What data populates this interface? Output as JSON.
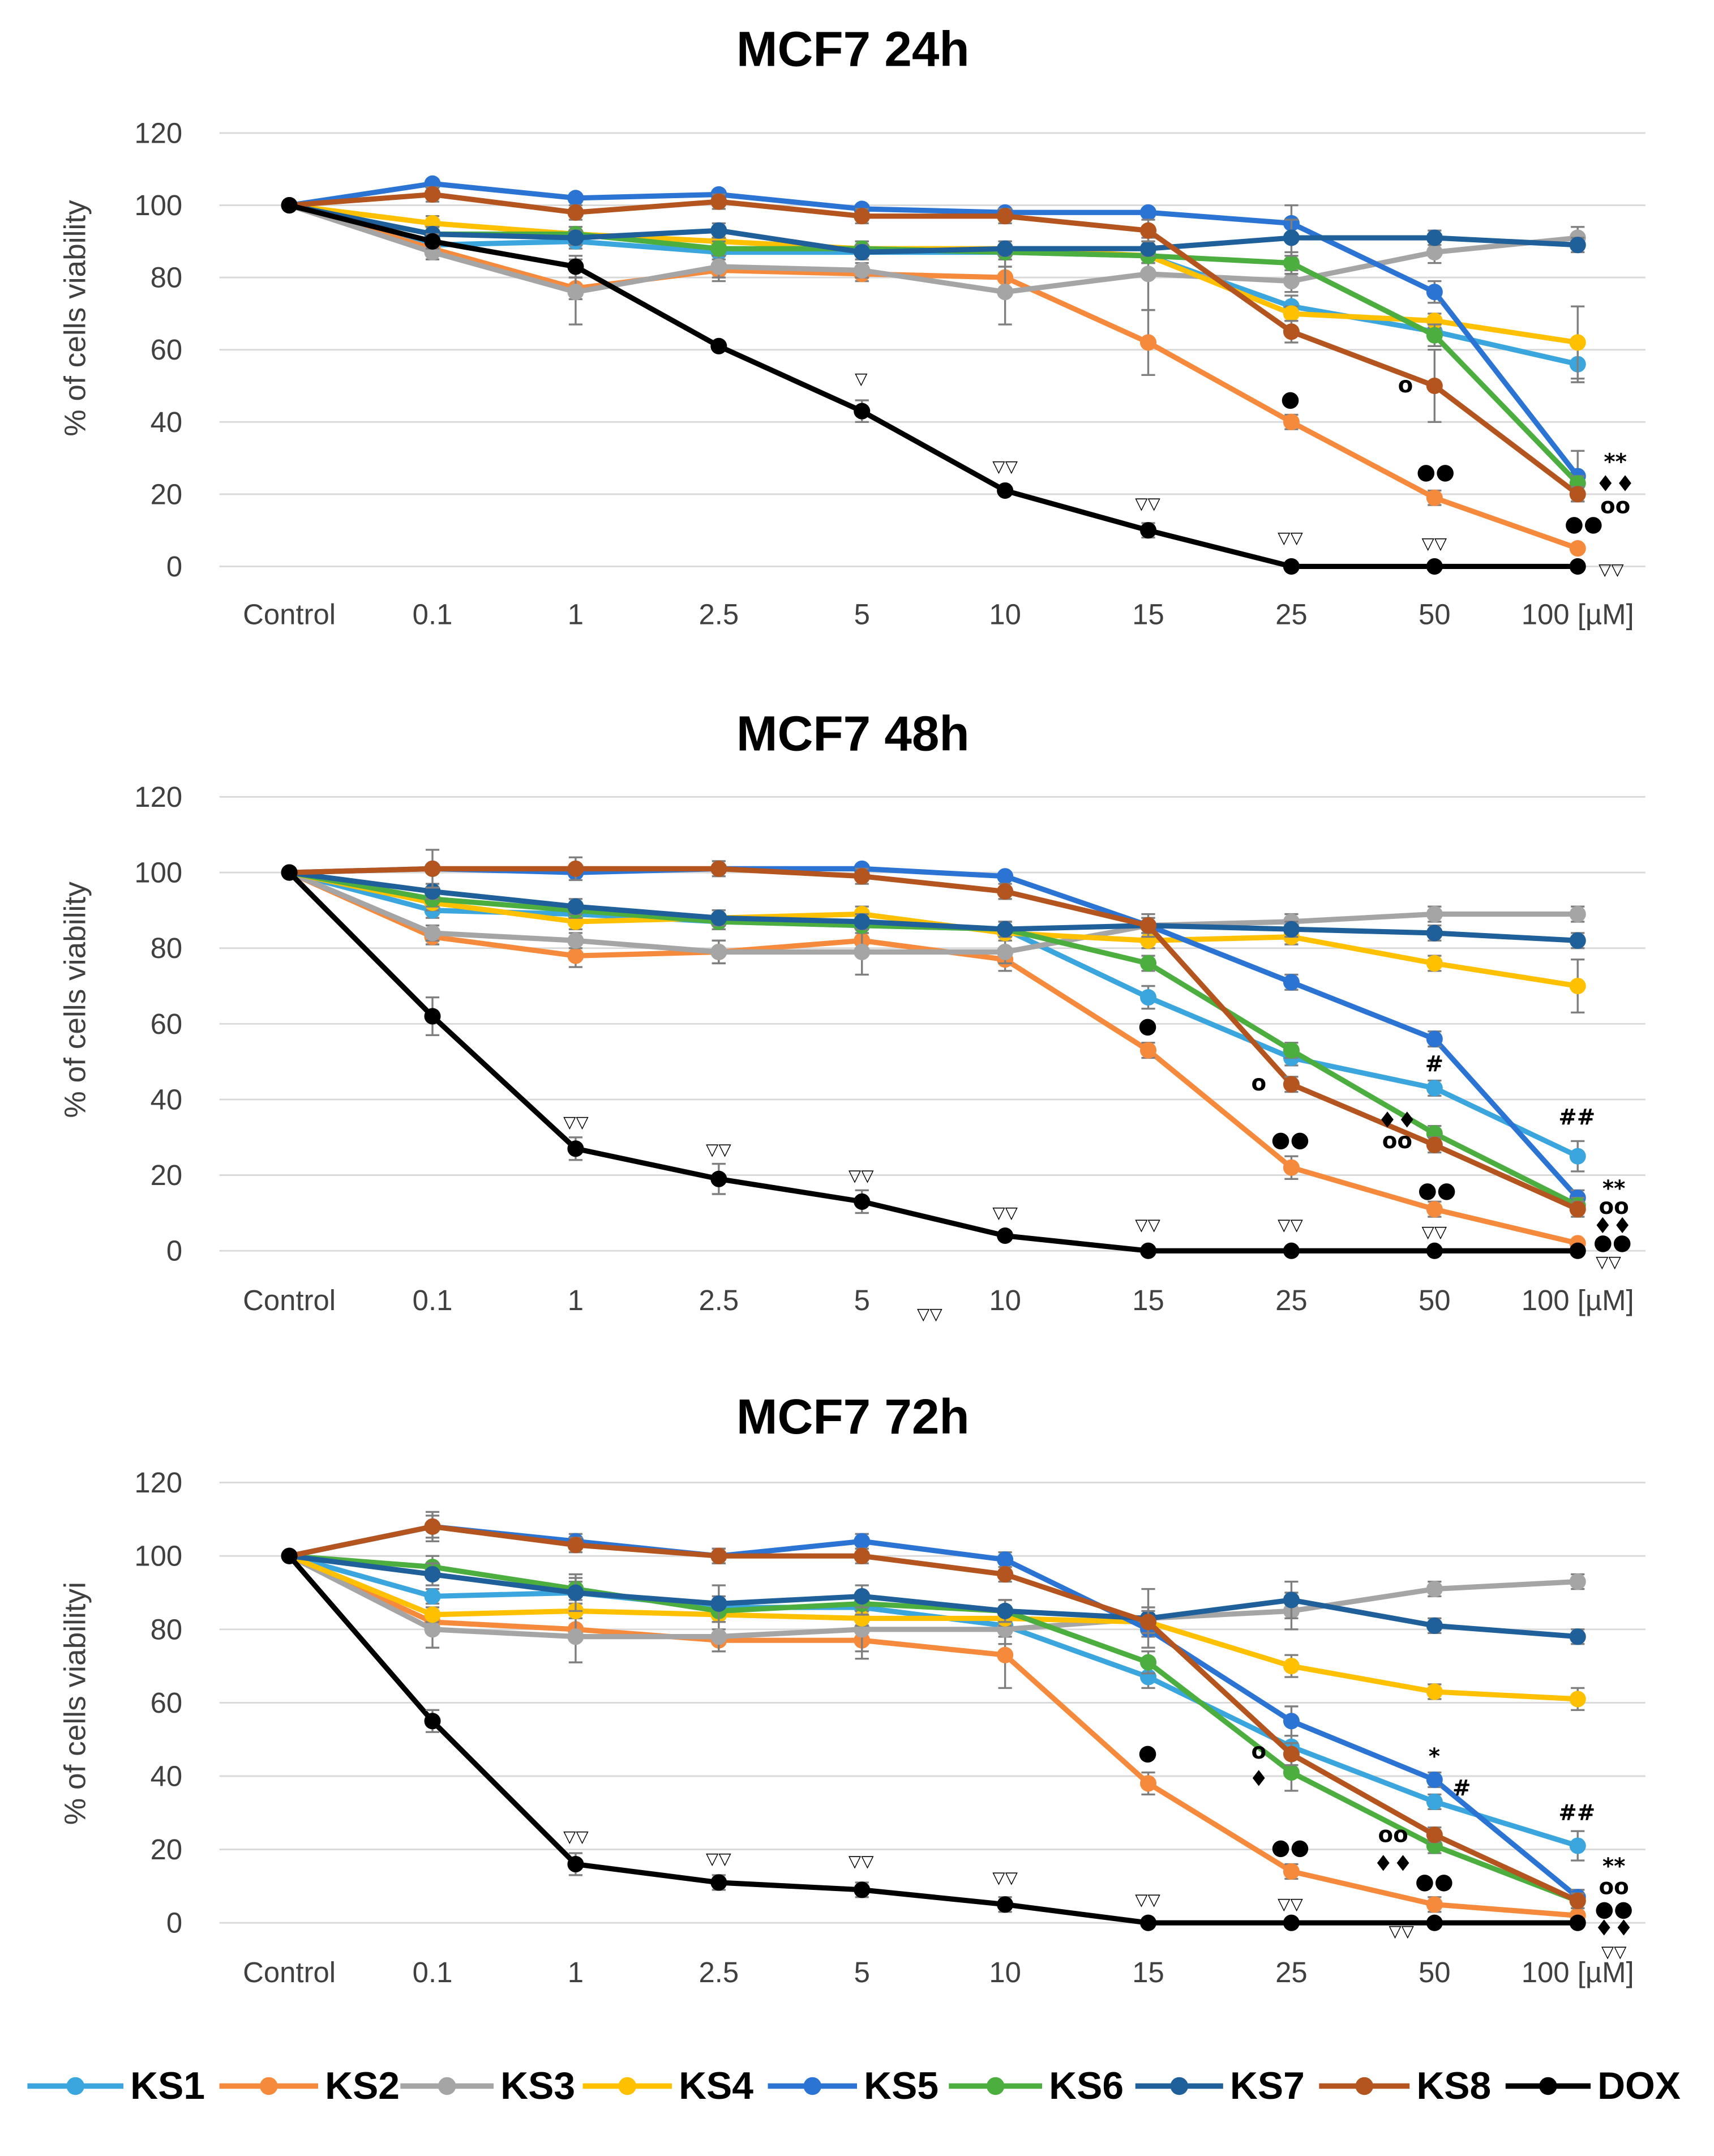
{
  "chart_data": [
    {
      "type": "line",
      "title": "MCF7 24h",
      "ylabel": "% of cells viability",
      "categories": [
        "Control",
        "0.1",
        "1",
        "2.5",
        "5",
        "10",
        "15",
        "25",
        "50",
        "100 [µM]"
      ],
      "ylim": [
        0,
        120
      ],
      "yticks": [
        0,
        20,
        40,
        60,
        80,
        100,
        120
      ],
      "grid": true,
      "legend": "bottom",
      "series": [
        {
          "name": "KS1",
          "color": "#3AA6DD",
          "values": [
            100,
            89,
            90,
            87,
            87,
            87,
            86,
            72,
            65,
            56
          ],
          "err": [
            0,
            2,
            2,
            2,
            2,
            2,
            2,
            3,
            2,
            5
          ]
        },
        {
          "name": "KS2",
          "color": "#F68A3C",
          "values": [
            100,
            88,
            77,
            82,
            81,
            80,
            62,
            40,
            19,
            5
          ],
          "err": [
            0,
            2,
            3,
            3,
            2,
            3,
            9,
            2,
            2,
            1
          ]
        },
        {
          "name": "KS3",
          "color": "#A5A5A5",
          "values": [
            100,
            87,
            76,
            83,
            82,
            76,
            81,
            79,
            87,
            91
          ],
          "err": [
            0,
            2,
            9,
            3,
            2,
            9,
            10,
            3,
            3,
            3
          ]
        },
        {
          "name": "KS4",
          "color": "#FFC000",
          "values": [
            100,
            95,
            92,
            90,
            88,
            88,
            86,
            70,
            68,
            62
          ],
          "err": [
            0,
            2,
            2,
            2,
            2,
            2,
            2,
            2,
            2,
            10
          ]
        },
        {
          "name": "KS5",
          "color": "#2B74D3",
          "values": [
            100,
            106,
            102,
            103,
            99,
            98,
            98,
            95,
            76,
            25
          ],
          "err": [
            0,
            1,
            1,
            1,
            1,
            1,
            1,
            5,
            3,
            7
          ]
        },
        {
          "name": "KS6",
          "color": "#4BAE3F",
          "values": [
            100,
            92,
            92,
            88,
            88,
            87,
            86,
            84,
            64,
            23
          ],
          "err": [
            0,
            2,
            2,
            2,
            2,
            2,
            2,
            3,
            3,
            2
          ]
        },
        {
          "name": "KS7",
          "color": "#1F5F9A",
          "values": [
            100,
            92,
            91,
            93,
            87,
            88,
            88,
            91,
            91,
            89
          ],
          "err": [
            0,
            2,
            2,
            2,
            2,
            2,
            2,
            5,
            2,
            2
          ]
        },
        {
          "name": "KS8",
          "color": "#B4541E",
          "values": [
            100,
            103,
            98,
            101,
            97,
            97,
            93,
            65,
            50,
            20
          ],
          "err": [
            0,
            2,
            2,
            2,
            2,
            2,
            3,
            3,
            10,
            2
          ]
        },
        {
          "name": "DOX",
          "color": "#000000",
          "values": [
            100,
            90,
            83,
            61,
            43,
            21,
            10,
            0,
            0,
            0
          ],
          "err": [
            0,
            2,
            3,
            1,
            3,
            1,
            2,
            0,
            0,
            0
          ]
        }
      ],
      "annotations": [
        "▽",
        "▽▽",
        "▽▽",
        "▽▽",
        "▽▽",
        "▽▽",
        "●",
        "o",
        "●●",
        "**",
        "♦♦",
        "oo",
        "●●"
      ]
    },
    {
      "type": "line",
      "title": "MCF7 48h",
      "ylabel": "% of cells viability",
      "categories": [
        "Control",
        "0.1",
        "1",
        "2.5",
        "5",
        "10",
        "15",
        "25",
        "50",
        "100 [µM]"
      ],
      "ylim": [
        0,
        120
      ],
      "yticks": [
        0,
        20,
        40,
        60,
        80,
        100,
        120
      ],
      "grid": true,
      "legend": "bottom",
      "series": [
        {
          "name": "KS1",
          "color": "#3AA6DD",
          "values": [
            100,
            90,
            89,
            87,
            86,
            85,
            67,
            51,
            43,
            25
          ],
          "err": [
            0,
            2,
            2,
            2,
            2,
            2,
            3,
            2,
            2,
            4
          ]
        },
        {
          "name": "KS2",
          "color": "#F68A3C",
          "values": [
            100,
            83,
            78,
            79,
            82,
            77,
            53,
            22,
            11,
            2
          ],
          "err": [
            0,
            2,
            3,
            3,
            3,
            3,
            2,
            3,
            2,
            1
          ]
        },
        {
          "name": "KS3",
          "color": "#A5A5A5",
          "values": [
            100,
            84,
            82,
            79,
            79,
            79,
            86,
            87,
            89,
            89
          ],
          "err": [
            0,
            2,
            2,
            3,
            6,
            3,
            2,
            2,
            2,
            2
          ]
        },
        {
          "name": "KS4",
          "color": "#FFC000",
          "values": [
            100,
            92,
            87,
            88,
            89,
            84,
            82,
            83,
            76,
            70
          ],
          "err": [
            0,
            2,
            2,
            2,
            2,
            2,
            2,
            2,
            2,
            7
          ]
        },
        {
          "name": "KS5",
          "color": "#2B74D3",
          "values": [
            100,
            101,
            100,
            101,
            101,
            99,
            86,
            71,
            56,
            14
          ],
          "err": [
            0,
            1,
            1,
            1,
            1,
            1,
            2,
            2,
            2,
            2
          ]
        },
        {
          "name": "KS6",
          "color": "#4BAE3F",
          "values": [
            100,
            93,
            90,
            87,
            86,
            85,
            76,
            53,
            31,
            12
          ],
          "err": [
            0,
            2,
            2,
            2,
            2,
            2,
            2,
            2,
            2,
            2
          ]
        },
        {
          "name": "KS7",
          "color": "#1F5F9A",
          "values": [
            100,
            95,
            91,
            88,
            87,
            85,
            86,
            85,
            84,
            82
          ],
          "err": [
            0,
            2,
            2,
            2,
            2,
            2,
            2,
            2,
            2,
            2
          ]
        },
        {
          "name": "KS8",
          "color": "#B4541E",
          "values": [
            100,
            101,
            101,
            101,
            99,
            95,
            86,
            44,
            28,
            11
          ],
          "err": [
            0,
            5,
            3,
            2,
            2,
            2,
            3,
            2,
            2,
            2
          ]
        },
        {
          "name": "DOX",
          "color": "#000000",
          "values": [
            100,
            62,
            27,
            19,
            13,
            4,
            0,
            0,
            0,
            0
          ],
          "err": [
            0,
            5,
            3,
            4,
            3,
            1,
            0,
            0,
            0,
            0
          ]
        }
      ],
      "annotations": [
        "▽▽",
        "▽▽",
        "▽▽",
        "▽▽",
        "▽▽",
        "▽▽",
        "▽▽",
        "▽▽",
        "▽▽",
        "●",
        "o",
        "●●",
        "#",
        "♦♦",
        "oo",
        "●●",
        "##",
        "**",
        "oo",
        "♦♦",
        "●●"
      ]
    },
    {
      "type": "line",
      "title": "MCF7 72h",
      "ylabel": "% of cells viabilityi",
      "categories": [
        "Control",
        "0.1",
        "1",
        "2.5",
        "5",
        "10",
        "15",
        "25",
        "50",
        "100 [µM]"
      ],
      "ylim": [
        0,
        120
      ],
      "yticks": [
        0,
        20,
        40,
        60,
        80,
        100,
        120
      ],
      "grid": true,
      "legend": "bottom",
      "series": [
        {
          "name": "KS1",
          "color": "#3AA6DD",
          "values": [
            100,
            89,
            90,
            86,
            86,
            81,
            67,
            48,
            33,
            21
          ],
          "err": [
            0,
            2,
            3,
            3,
            3,
            3,
            3,
            3,
            2,
            4
          ]
        },
        {
          "name": "KS2",
          "color": "#F68A3C",
          "values": [
            100,
            82,
            80,
            77,
            77,
            73,
            38,
            14,
            5,
            2
          ],
          "err": [
            0,
            3,
            3,
            3,
            3,
            9,
            3,
            2,
            2,
            1
          ]
        },
        {
          "name": "KS3",
          "color": "#A5A5A5",
          "values": [
            100,
            80,
            78,
            78,
            80,
            80,
            83,
            85,
            91,
            93
          ],
          "err": [
            0,
            5,
            7,
            4,
            8,
            4,
            3,
            5,
            2,
            2
          ]
        },
        {
          "name": "KS4",
          "color": "#FFC000",
          "values": [
            100,
            84,
            85,
            84,
            83,
            83,
            82,
            70,
            63,
            61
          ],
          "err": [
            0,
            2,
            2,
            2,
            2,
            2,
            2,
            3,
            2,
            3
          ]
        },
        {
          "name": "KS5",
          "color": "#2B74D3",
          "values": [
            100,
            108,
            104,
            100,
            104,
            99,
            80,
            55,
            39,
            7
          ],
          "err": [
            0,
            3,
            2,
            2,
            2,
            2,
            2,
            4,
            2,
            2
          ]
        },
        {
          "name": "KS6",
          "color": "#4BAE3F",
          "values": [
            100,
            97,
            91,
            85,
            87,
            85,
            71,
            41,
            21,
            6
          ],
          "err": [
            0,
            3,
            3,
            3,
            3,
            3,
            3,
            5,
            2,
            2
          ]
        },
        {
          "name": "KS7",
          "color": "#1F5F9A",
          "values": [
            100,
            95,
            90,
            87,
            89,
            85,
            83,
            88,
            81,
            78
          ],
          "err": [
            0,
            3,
            5,
            5,
            3,
            3,
            8,
            5,
            2,
            2
          ]
        },
        {
          "name": "KS8",
          "color": "#B4541E",
          "values": [
            100,
            108,
            103,
            100,
            100,
            95,
            82,
            46,
            24,
            6
          ],
          "err": [
            0,
            4,
            2,
            2,
            2,
            2,
            3,
            3,
            2,
            2
          ]
        },
        {
          "name": "DOX",
          "color": "#000000",
          "values": [
            100,
            55,
            16,
            11,
            9,
            5,
            0,
            0,
            0,
            0
          ],
          "err": [
            0,
            3,
            3,
            2,
            2,
            2,
            0,
            0,
            0,
            0
          ]
        }
      ],
      "annotations": [
        "▽▽",
        "▽▽",
        "▽▽",
        "▽▽",
        "▽▽",
        "▽▽",
        "▽▽",
        "▽▽",
        "●",
        "o",
        "♦",
        "●●",
        "*",
        "#",
        "oo",
        "♦♦",
        "●●",
        "##",
        "**",
        "oo",
        "●●",
        "♦♦"
      ]
    }
  ]
}
